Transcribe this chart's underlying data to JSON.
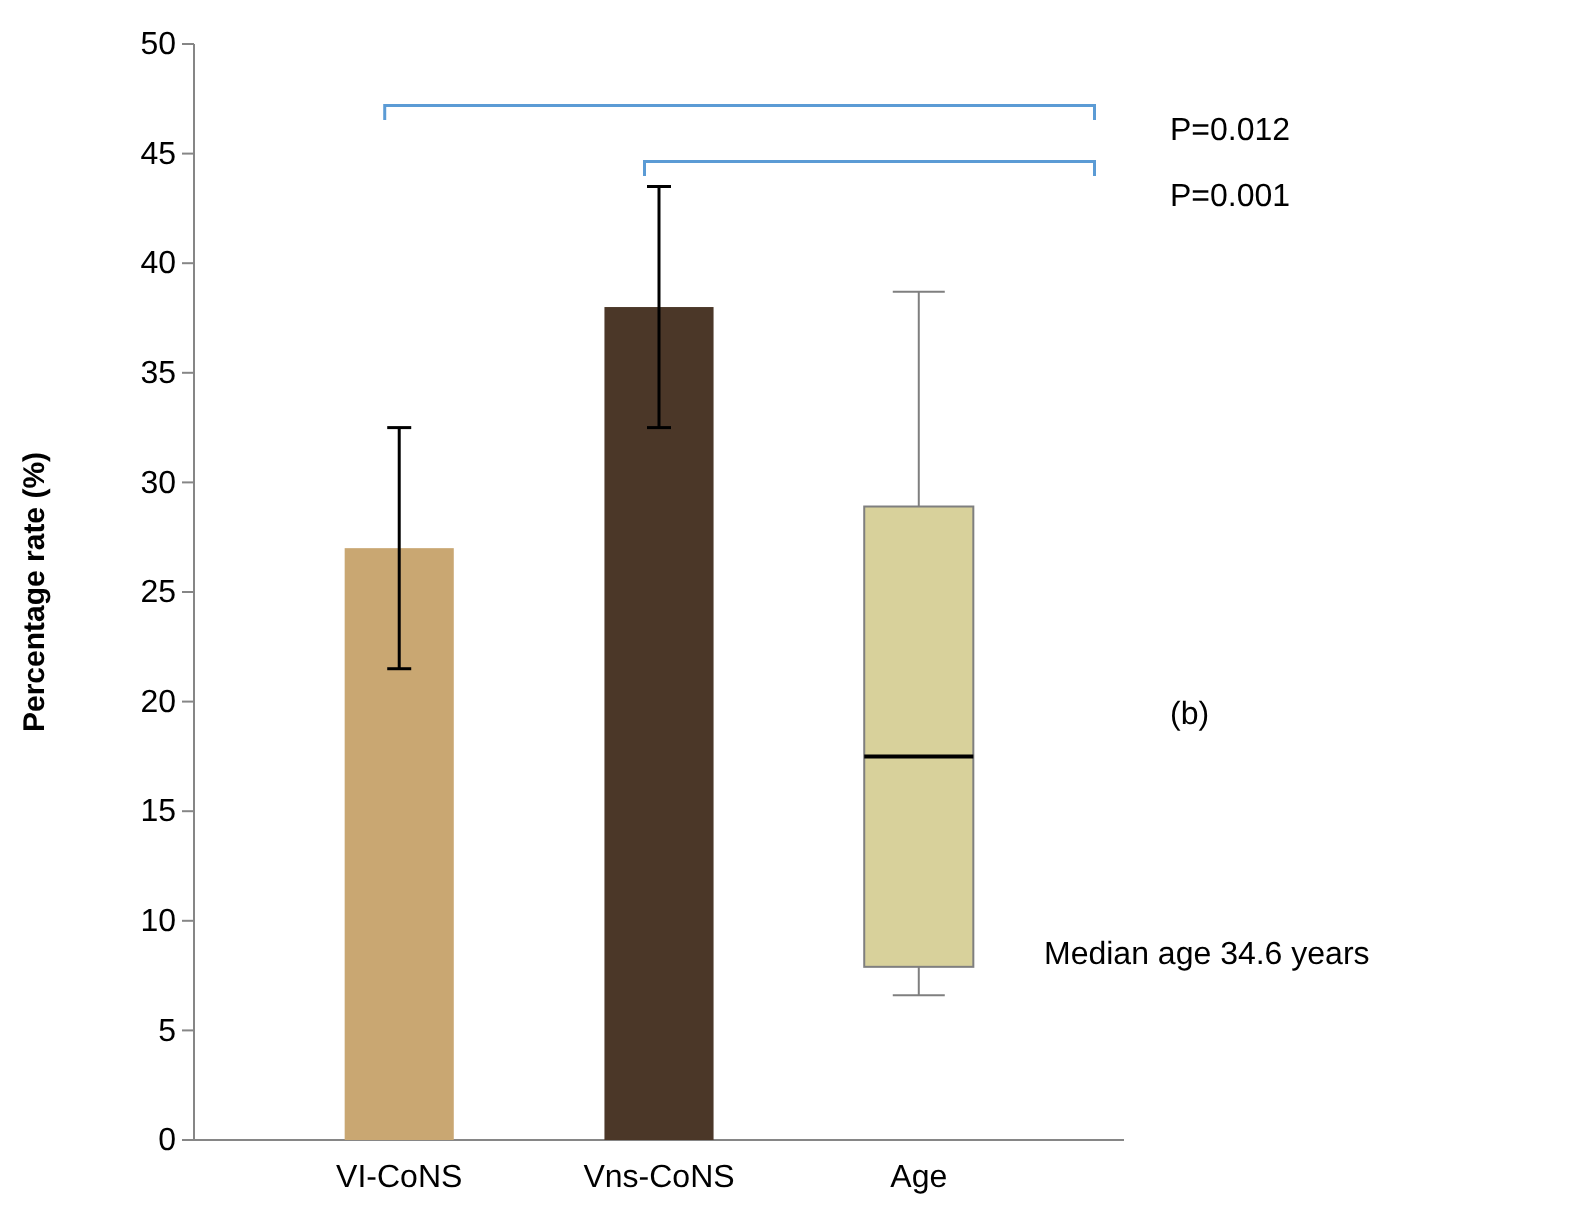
{
  "chart_data": {
    "type": "bar",
    "ylabel": "Percentage rate (%)",
    "categories": [
      "VI-CoNS",
      "Vns-CoNS",
      "Age"
    ],
    "ylim": [
      0,
      50
    ],
    "yticks": [
      0,
      5,
      10,
      15,
      20,
      25,
      30,
      35,
      40,
      45,
      50
    ],
    "series": [
      {
        "values": [
          27,
          38,
          null
        ],
        "colors": [
          "#c9a772",
          "#4b3728",
          null
        ],
        "errors": [
          [
            21.5,
            32.5
          ],
          [
            32.5,
            43.5
          ],
          null
        ]
      },
      {
        "type": "box",
        "color": "#d8d19b",
        "boxes": [
          null,
          null,
          {
            "low": 6.6,
            "q1": 7.9,
            "median": 17.5,
            "q3": 28.9,
            "high": 38.7
          }
        ]
      }
    ],
    "annotations": [
      "P=0.012",
      "P=0.001",
      "(b)",
      "Median age 34.6 years"
    ]
  }
}
